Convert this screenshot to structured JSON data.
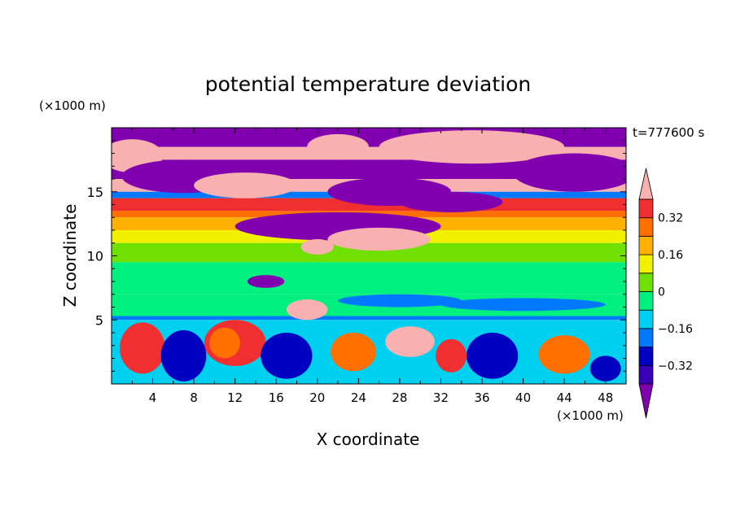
{
  "chart_data": {
    "type": "heatmap",
    "title": "potential temperature deviation",
    "xlabel": "X coordinate",
    "ylabel": "Z coordinate",
    "x_unit": "(×1000 m)",
    "y_unit": "(×1000 m)",
    "time_label": "t=777600 s",
    "xlim": [
      0,
      50
    ],
    "ylim": [
      0,
      20
    ],
    "x_ticks": [
      4,
      8,
      12,
      16,
      20,
      24,
      28,
      32,
      36,
      40,
      44,
      48
    ],
    "x_tick_labels": [
      "4",
      "8",
      "12",
      "16",
      "20",
      "24",
      "28",
      "32",
      "36",
      "40",
      "44",
      "48"
    ],
    "y_ticks": [
      5,
      10,
      15
    ],
    "y_tick_labels": [
      "5",
      "10",
      "15"
    ],
    "colorbar": {
      "levels": [
        -0.4,
        -0.32,
        -0.24,
        -0.16,
        -0.08,
        0,
        0.08,
        0.16,
        0.24,
        0.32,
        0.4
      ],
      "tick_values": [
        0.32,
        0.16,
        0,
        -0.16,
        -0.32
      ],
      "tick_labels": [
        "0.32",
        "0.16",
        "0",
        "−0.16",
        "−0.32"
      ],
      "colors": [
        "#8000b0",
        "#3a00b8",
        "#0000c0",
        "#0078ff",
        "#00d0f0",
        "#00f080",
        "#70e000",
        "#f0f000",
        "#ffb000",
        "#ff7000",
        "#f03030",
        "#f8b0b0"
      ],
      "extend": "both"
    },
    "bands": [
      {
        "z": [
          18.5,
          20
        ],
        "level": 0
      },
      {
        "z": [
          17.5,
          18.5
        ],
        "level": 11
      },
      {
        "z": [
          16,
          17.5
        ],
        "level": 0
      },
      {
        "z": [
          15,
          16
        ],
        "level": 11
      },
      {
        "z": [
          14.5,
          15
        ],
        "level": 3
      },
      {
        "z": [
          13.5,
          14.5
        ],
        "level": 10
      },
      {
        "z": [
          13,
          13.5
        ],
        "level": 9
      },
      {
        "z": [
          12,
          13
        ],
        "level": 8
      },
      {
        "z": [
          11,
          12
        ],
        "level": 7
      },
      {
        "z": [
          9.5,
          11
        ],
        "level": 6
      },
      {
        "z": [
          7,
          9.5
        ],
        "level": 5
      },
      {
        "z": [
          5.3,
          7
        ],
        "level": 5
      },
      {
        "z": [
          5,
          5.3
        ],
        "level": 3
      },
      {
        "z": [
          0,
          5
        ],
        "level": 4
      }
    ],
    "features": [
      {
        "type": "ellipse",
        "x": 2,
        "y": 17.8,
        "rx": 3,
        "ry": 1.3,
        "level": 11
      },
      {
        "type": "ellipse",
        "x": 22,
        "y": 18.5,
        "rx": 3,
        "ry": 1,
        "level": 11
      },
      {
        "type": "ellipse",
        "x": 35,
        "y": 18.5,
        "rx": 9,
        "ry": 1.3,
        "level": 11
      },
      {
        "type": "ellipse",
        "x": 7,
        "y": 16.2,
        "rx": 6,
        "ry": 1.3,
        "level": 0
      },
      {
        "type": "ellipse",
        "x": 13,
        "y": 15.5,
        "rx": 5,
        "ry": 1,
        "level": 11
      },
      {
        "type": "ellipse",
        "x": 27,
        "y": 15,
        "rx": 6,
        "ry": 1.1,
        "level": 0
      },
      {
        "type": "ellipse",
        "x": 45,
        "y": 16.5,
        "rx": 6,
        "ry": 1.5,
        "level": 0
      },
      {
        "type": "ellipse",
        "x": 22,
        "y": 12.3,
        "rx": 10,
        "ry": 1.1,
        "level": 0
      },
      {
        "type": "ellipse",
        "x": 33,
        "y": 14.2,
        "rx": 5,
        "ry": 0.8,
        "level": 0
      },
      {
        "type": "ellipse",
        "x": 26,
        "y": 11.3,
        "rx": 5,
        "ry": 0.9,
        "level": 11
      },
      {
        "type": "ellipse",
        "x": 20,
        "y": 10.7,
        "rx": 1.6,
        "ry": 0.6,
        "level": 11
      },
      {
        "type": "ellipse",
        "x": 19,
        "y": 5.8,
        "rx": 2,
        "ry": 0.8,
        "level": 11
      },
      {
        "type": "ellipse",
        "x": 15,
        "y": 8,
        "rx": 1.8,
        "ry": 0.5,
        "level": 0
      },
      {
        "type": "ellipse",
        "x": 28,
        "y": 6.5,
        "rx": 6,
        "ry": 0.5,
        "level": 3
      },
      {
        "type": "ellipse",
        "x": 40,
        "y": 6.2,
        "rx": 8,
        "ry": 0.5,
        "level": 3
      },
      {
        "type": "ellipse",
        "x": 3,
        "y": 2.8,
        "rx": 2.2,
        "ry": 2,
        "level": 10
      },
      {
        "type": "ellipse",
        "x": 12,
        "y": 3.2,
        "rx": 3,
        "ry": 1.8,
        "level": 10
      },
      {
        "type": "ellipse",
        "x": 11,
        "y": 3.2,
        "rx": 1.5,
        "ry": 1.2,
        "level": 9
      },
      {
        "type": "ellipse",
        "x": 7,
        "y": 2.2,
        "rx": 2.2,
        "ry": 2,
        "level": 2
      },
      {
        "type": "ellipse",
        "x": 17,
        "y": 2.2,
        "rx": 2.5,
        "ry": 1.8,
        "level": 2
      },
      {
        "type": "ellipse",
        "x": 23.5,
        "y": 2.5,
        "rx": 2.2,
        "ry": 1.5,
        "level": 9
      },
      {
        "type": "ellipse",
        "x": 29,
        "y": 3.3,
        "rx": 2.4,
        "ry": 1.2,
        "level": 11
      },
      {
        "type": "ellipse",
        "x": 33,
        "y": 2.2,
        "rx": 1.5,
        "ry": 1.3,
        "level": 10
      },
      {
        "type": "ellipse",
        "x": 37,
        "y": 2.2,
        "rx": 2.5,
        "ry": 1.8,
        "level": 2
      },
      {
        "type": "ellipse",
        "x": 44,
        "y": 2.3,
        "rx": 2.5,
        "ry": 1.5,
        "level": 9
      },
      {
        "type": "ellipse",
        "x": 48,
        "y": 1.2,
        "rx": 1.5,
        "ry": 1,
        "level": 2
      }
    ]
  }
}
